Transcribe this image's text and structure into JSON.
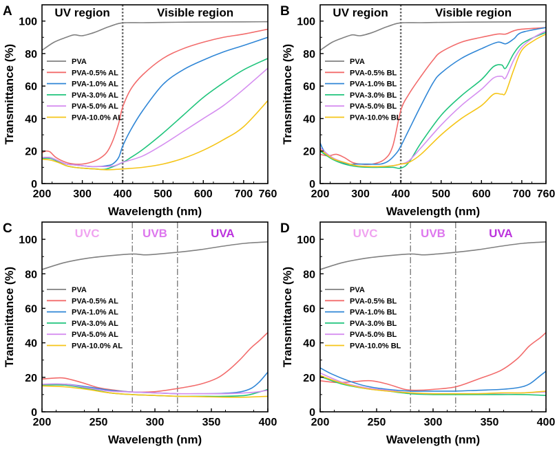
{
  "colors": {
    "PVA": "#808080",
    "p05": "#f26b6b",
    "p10": "#2f86d6",
    "p30": "#1fc47c",
    "p50": "#d58ef0",
    "p100": "#f5c518",
    "uvc_label": "#f0a3f0",
    "uvb_label": "#dd77ee",
    "uva_label": "#bb33dd",
    "divider": "#666666"
  },
  "chart_data": [
    {
      "panel": "A",
      "type": "line",
      "xlabel": "Wavelength (nm)",
      "ylabel": "Transmittance (%)",
      "xlim": [
        200,
        760
      ],
      "ylim": [
        0,
        110
      ],
      "xticks": [
        "200",
        "300",
        "400",
        "500",
        "600",
        "700",
        "760"
      ],
      "yticks": [
        "0",
        "20",
        "40",
        "60",
        "80",
        "100"
      ],
      "divider_lines": [
        400
      ],
      "region_labels": [
        "UV region",
        "Visible region"
      ],
      "series": [
        {
          "name": "PVA",
          "color_key": "PVA",
          "x": [
            200,
            230,
            260,
            280,
            300,
            330,
            360,
            390,
            410,
            450,
            500,
            600,
            700,
            760
          ],
          "y": [
            82,
            87,
            90,
            91.5,
            91,
            93,
            96,
            98.5,
            99,
            99,
            99.2,
            99.4,
            99.5,
            99.6
          ]
        },
        {
          "name": "PVA-0.5% AL",
          "color_key": "p05",
          "x": [
            200,
            210,
            220,
            235,
            260,
            280,
            300,
            320,
            340,
            360,
            375,
            390,
            400,
            420,
            450,
            500,
            550,
            600,
            650,
            700,
            760
          ],
          "y": [
            19,
            20,
            19.5,
            16,
            13,
            12,
            12,
            13,
            15,
            19,
            26,
            37,
            47,
            58,
            67,
            77,
            83,
            87,
            90,
            92,
            95
          ]
        },
        {
          "name": "PVA-1.0% AL",
          "color_key": "p10",
          "x": [
            200,
            220,
            240,
            260,
            280,
            300,
            320,
            340,
            360,
            375,
            390,
            400,
            420,
            450,
            500,
            550,
            600,
            650,
            700,
            760
          ],
          "y": [
            16,
            16,
            14,
            12,
            11.5,
            11,
            10.5,
            10.5,
            11,
            12,
            16,
            23,
            33,
            45,
            61,
            70,
            76,
            81,
            85,
            90
          ]
        },
        {
          "name": "PVA-3.0% AL",
          "color_key": "p30",
          "x": [
            200,
            220,
            240,
            260,
            280,
            300,
            330,
            360,
            400,
            420,
            450,
            500,
            550,
            600,
            650,
            700,
            760
          ],
          "y": [
            15.5,
            15.5,
            13.5,
            11,
            10,
            9.5,
            9,
            9,
            13,
            16,
            21,
            31,
            42,
            53,
            62,
            70,
            77
          ]
        },
        {
          "name": "PVA-5.0% AL",
          "color_key": "p50",
          "x": [
            200,
            220,
            240,
            260,
            280,
            300,
            320,
            340,
            360,
            380,
            400,
            450,
            500,
            550,
            600,
            650,
            700,
            760
          ],
          "y": [
            16,
            16,
            14,
            12,
            11.5,
            11,
            10.5,
            10.5,
            10.5,
            11,
            13,
            17,
            24,
            32,
            40,
            48,
            58,
            71
          ]
        },
        {
          "name": "PVA-10.0% AL",
          "color_key": "p100",
          "x": [
            200,
            220,
            240,
            260,
            280,
            300,
            330,
            360,
            400,
            450,
            500,
            550,
            600,
            650,
            700,
            760
          ],
          "y": [
            15,
            14.5,
            13,
            11,
            10,
            9.5,
            9,
            8.5,
            9,
            10,
            12,
            15.5,
            20.5,
            27,
            35,
            51
          ]
        }
      ]
    },
    {
      "panel": "B",
      "type": "line",
      "xlabel": "Wavelength (nm)",
      "ylabel": "Transmittance (%)",
      "xlim": [
        200,
        760
      ],
      "ylim": [
        0,
        110
      ],
      "xticks": [
        "200",
        "300",
        "400",
        "500",
        "600",
        "700",
        "760"
      ],
      "yticks": [
        "0",
        "20",
        "40",
        "60",
        "80",
        "100"
      ],
      "divider_lines": [
        400
      ],
      "region_labels": [
        "UV region",
        "Visible region"
      ],
      "series": [
        {
          "name": "PVA",
          "color_key": "PVA",
          "x": [
            200,
            230,
            260,
            280,
            300,
            330,
            360,
            390,
            410,
            450,
            500,
            600,
            700,
            760
          ],
          "y": [
            82,
            87,
            90,
            91.5,
            91,
            93,
            96,
            98.5,
            99,
            99,
            99.2,
            99.4,
            99.5,
            99.6
          ]
        },
        {
          "name": "PVA-0.5% BL",
          "color_key": "p05",
          "x": [
            200,
            220,
            240,
            260,
            280,
            300,
            330,
            360,
            380,
            400,
            420,
            450,
            480,
            500,
            550,
            600,
            640,
            660,
            680,
            700,
            760
          ],
          "y": [
            18,
            17,
            18,
            16,
            13,
            12,
            12,
            15,
            23,
            45,
            55,
            66,
            76,
            81,
            87,
            90,
            92,
            92,
            94,
            95,
            96
          ]
        },
        {
          "name": "PVA-1.0% BL",
          "color_key": "p10",
          "x": [
            200,
            210,
            230,
            250,
            270,
            290,
            320,
            350,
            370,
            390,
            400,
            420,
            450,
            480,
            500,
            550,
            600,
            640,
            660,
            680,
            700,
            760
          ],
          "y": [
            25,
            20,
            16,
            13.5,
            12,
            12,
            12,
            12,
            14,
            19,
            23,
            33,
            48,
            62,
            68,
            77,
            83,
            87,
            86,
            89,
            93,
            96
          ]
        },
        {
          "name": "PVA-3.0% BL",
          "color_key": "p30",
          "x": [
            200,
            230,
            260,
            290,
            320,
            350,
            380,
            400,
            420,
            450,
            500,
            550,
            600,
            630,
            650,
            660,
            680,
            700,
            730,
            760
          ],
          "y": [
            20,
            15,
            12,
            10.5,
            10,
            10,
            10,
            9.5,
            13,
            25,
            42,
            54,
            64,
            72,
            73,
            71,
            80,
            86,
            90,
            93
          ]
        },
        {
          "name": "PVA-5.0% BL",
          "color_key": "p50",
          "x": [
            200,
            230,
            260,
            290,
            320,
            350,
            380,
            400,
            420,
            450,
            500,
            550,
            600,
            630,
            650,
            660,
            680,
            700,
            730,
            760
          ],
          "y": [
            22,
            16,
            13,
            11,
            10.5,
            10.5,
            11,
            12,
            14,
            22,
            36,
            48,
            58,
            65,
            66,
            65,
            76,
            84,
            90,
            94
          ]
        },
        {
          "name": "PVA-10.0% BL",
          "color_key": "p100",
          "x": [
            200,
            230,
            260,
            290,
            320,
            350,
            380,
            400,
            420,
            450,
            500,
            550,
            600,
            630,
            650,
            660,
            680,
            700,
            730,
            760
          ],
          "y": [
            21,
            15.5,
            13,
            11,
            10.5,
            10.5,
            11,
            12,
            13,
            18,
            30,
            40,
            48,
            55,
            55,
            56,
            70,
            82,
            88,
            92
          ]
        }
      ]
    },
    {
      "panel": "C",
      "type": "line",
      "xlabel": "Wavelength (nm)",
      "ylabel": "Transmittance (%)",
      "xlim": [
        200,
        400
      ],
      "ylim": [
        0,
        110
      ],
      "xticks": [
        "200",
        "250",
        "300",
        "350",
        "400"
      ],
      "yticks": [
        "0",
        "20",
        "40",
        "60",
        "80",
        "100"
      ],
      "divider_lines": [
        280,
        320
      ],
      "band_labels": [
        "UVC",
        "UVB",
        "UVA"
      ],
      "series": [
        {
          "name": "PVA",
          "color_key": "PVA",
          "x": [
            200,
            220,
            240,
            260,
            280,
            290,
            300,
            320,
            340,
            360,
            380,
            400
          ],
          "y": [
            82.5,
            86.5,
            89,
            90.5,
            91.5,
            91,
            91.3,
            92.5,
            94,
            96,
            97.7,
            98.5
          ]
        },
        {
          "name": "PVA-0.5% AL",
          "color_key": "p05",
          "x": [
            200,
            210,
            220,
            235,
            250,
            265,
            280,
            300,
            320,
            340,
            355,
            365,
            375,
            385,
            392,
            400
          ],
          "y": [
            19,
            19.5,
            19.5,
            17,
            14,
            12.5,
            11.5,
            11.7,
            13.5,
            16,
            19.5,
            24,
            30,
            37,
            41,
            46
          ]
        },
        {
          "name": "PVA-1.0% AL",
          "color_key": "p10",
          "x": [
            200,
            220,
            240,
            260,
            280,
            300,
            320,
            340,
            360,
            375,
            385,
            392,
            400
          ],
          "y": [
            16,
            16,
            14.5,
            12.5,
            11.5,
            11,
            10.5,
            10.5,
            10.7,
            11.5,
            13.5,
            17,
            23
          ]
        },
        {
          "name": "PVA-3.0% AL",
          "color_key": "p30",
          "x": [
            200,
            220,
            240,
            260,
            280,
            300,
            320,
            340,
            360,
            380,
            390,
            400
          ],
          "y": [
            15.5,
            15.5,
            13.5,
            11,
            10,
            9.5,
            9,
            9,
            9,
            9.5,
            11,
            13
          ]
        },
        {
          "name": "PVA-5.0% AL",
          "color_key": "p50",
          "x": [
            200,
            220,
            240,
            260,
            280,
            300,
            320,
            340,
            360,
            380,
            390,
            400
          ],
          "y": [
            16,
            16,
            14,
            12,
            11.5,
            11,
            10.5,
            10.5,
            10.5,
            11,
            11.5,
            12.5
          ]
        },
        {
          "name": "PVA-10.0% AL",
          "color_key": "p100",
          "x": [
            200,
            220,
            240,
            260,
            280,
            300,
            320,
            340,
            360,
            380,
            400
          ],
          "y": [
            15,
            14.5,
            13,
            11,
            10,
            9.5,
            9,
            8.8,
            8.5,
            8.5,
            9
          ]
        }
      ]
    },
    {
      "panel": "D",
      "type": "line",
      "xlabel": "Wavelength (nm)",
      "ylabel": "Transmittance (%)",
      "xlim": [
        200,
        400
      ],
      "ylim": [
        0,
        110
      ],
      "xticks": [
        "200",
        "250",
        "300",
        "350",
        "400"
      ],
      "yticks": [
        "0",
        "20",
        "40",
        "60",
        "80",
        "100"
      ],
      "divider_lines": [
        280,
        320
      ],
      "band_labels": [
        "UVC",
        "UVB",
        "UVA"
      ],
      "series": [
        {
          "name": "PVA",
          "color_key": "PVA",
          "x": [
            200,
            220,
            240,
            260,
            280,
            290,
            300,
            320,
            340,
            360,
            380,
            400
          ],
          "y": [
            82.5,
            86.5,
            89,
            90.5,
            91.5,
            91,
            91.3,
            92.5,
            94,
            96,
            97.7,
            98.5
          ]
        },
        {
          "name": "PVA-0.5% BL",
          "color_key": "p05",
          "x": [
            200,
            215,
            230,
            245,
            260,
            275,
            285,
            300,
            320,
            340,
            360,
            375,
            385,
            395,
            400
          ],
          "y": [
            18,
            17,
            17.5,
            18,
            16,
            13,
            12.5,
            13,
            14.5,
            19,
            24,
            31,
            38,
            43,
            46
          ]
        },
        {
          "name": "PVA-1.0% BL",
          "color_key": "p10",
          "x": [
            200,
            210,
            225,
            240,
            260,
            280,
            300,
            320,
            340,
            360,
            375,
            385,
            395,
            400
          ],
          "y": [
            25.5,
            22,
            18,
            15,
            13,
            12,
            12,
            12,
            12.5,
            13,
            14,
            16,
            21,
            23.5
          ]
        },
        {
          "name": "PVA-3.0% BL",
          "color_key": "p30",
          "x": [
            200,
            220,
            240,
            260,
            280,
            300,
            320,
            340,
            360,
            380,
            400
          ],
          "y": [
            20.5,
            16,
            13.5,
            12,
            10.5,
            10,
            10,
            10,
            10,
            10,
            9.5
          ]
        },
        {
          "name": "PVA-5.0% BL",
          "color_key": "p50",
          "x": [
            200,
            220,
            240,
            260,
            280,
            300,
            320,
            340,
            360,
            380,
            400
          ],
          "y": [
            22.5,
            17,
            14,
            12.5,
            11,
            10.5,
            10.5,
            10.5,
            10.8,
            11,
            11.5
          ]
        },
        {
          "name": "PVA-10.0% BL",
          "color_key": "p100",
          "x": [
            200,
            220,
            240,
            260,
            280,
            300,
            320,
            340,
            360,
            380,
            400
          ],
          "y": [
            21,
            16.5,
            13.5,
            12,
            11,
            10.5,
            10.5,
            10.5,
            11,
            11,
            12
          ]
        }
      ]
    }
  ]
}
